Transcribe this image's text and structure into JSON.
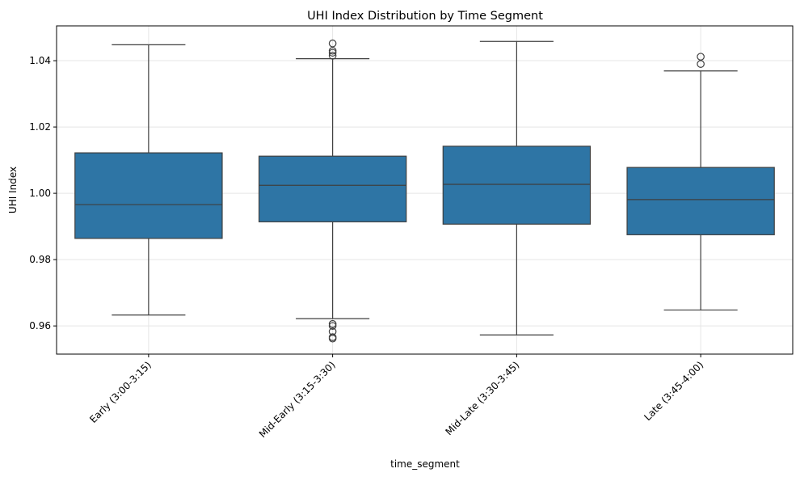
{
  "chart_data": {
    "type": "box",
    "title": "UHI Index Distribution by Time Segment",
    "xlabel": "time_segment",
    "ylabel": "UHI Index",
    "ylim": [
      0.9515,
      1.0505
    ],
    "yticks": [
      0.96,
      0.98,
      1.0,
      1.02,
      1.04
    ],
    "ytick_labels": [
      "0.96",
      "0.98",
      "1.00",
      "1.02",
      "1.04"
    ],
    "grid": true,
    "color": "#2e75a5",
    "categories": [
      "Early (3:00-3:15)",
      "Mid-Early (3:15-3:30)",
      "Mid-Late (3:30-3:45)",
      "Late (3:45-4:00)"
    ],
    "boxes": [
      {
        "whisker_low": 0.9633,
        "q1": 0.9864,
        "median": 0.9966,
        "q3": 1.0122,
        "whisker_high": 1.0448,
        "outliers": []
      },
      {
        "whisker_low": 0.9622,
        "q1": 0.9914,
        "median": 1.0024,
        "q3": 1.0112,
        "whisker_high": 1.0406,
        "outliers": [
          1.0452,
          1.043,
          1.0424,
          1.0415,
          0.9606,
          0.96,
          0.9583,
          0.9566,
          0.9562
        ]
      },
      {
        "whisker_low": 0.9573,
        "q1": 0.9907,
        "median": 1.0027,
        "q3": 1.0142,
        "whisker_high": 1.0458,
        "outliers": []
      },
      {
        "whisker_low": 0.9648,
        "q1": 0.9875,
        "median": 0.9981,
        "q3": 1.0078,
        "whisker_high": 1.0369,
        "outliers": [
          1.0412,
          1.039
        ]
      }
    ]
  }
}
